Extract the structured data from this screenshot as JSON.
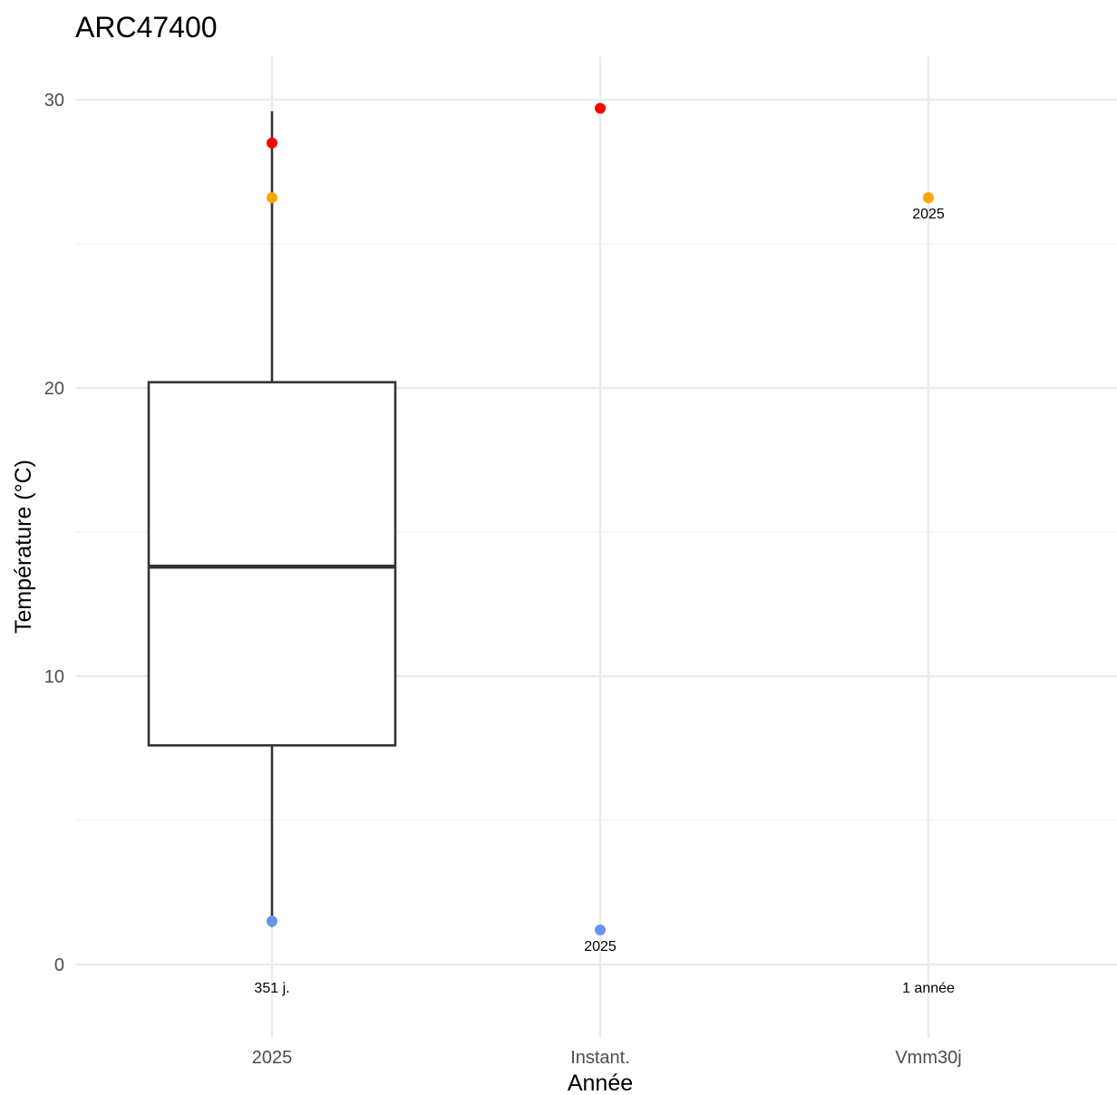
{
  "chart_data": {
    "type": "boxplot",
    "title": "ARC47400",
    "xlabel": "Année",
    "ylabel": "Température (°C)",
    "categories": [
      "2025",
      "Instant.",
      "Vmm30j"
    ],
    "ylim": [
      -2.5,
      31.5
    ],
    "yticks": [
      0,
      10,
      20,
      30
    ],
    "grid": true,
    "box": {
      "category": "2025",
      "whisker_low": 1.3,
      "q1": 7.6,
      "median": 13.8,
      "q3": 20.2,
      "whisker_high": 29.6,
      "annotation": "351 j."
    },
    "points": [
      {
        "category": "2025",
        "y": 28.5,
        "color": "#ff0000"
      },
      {
        "category": "2025",
        "y": 26.6,
        "color": "#ffa500"
      },
      {
        "category": "2025",
        "y": 1.5,
        "color": "#6495ed"
      },
      {
        "category": "Instant.",
        "y": 29.7,
        "color": "#ff0000"
      },
      {
        "category": "Instant.",
        "y": 1.2,
        "color": "#6495ed",
        "label": "2025"
      },
      {
        "category": "Vmm30j",
        "y": 26.6,
        "color": "#ffa500",
        "label": "2025"
      }
    ],
    "bottom_annotations": [
      {
        "category": "2025",
        "text": "351 j."
      },
      {
        "category": "Vmm30j",
        "text": "1 année"
      }
    ]
  }
}
